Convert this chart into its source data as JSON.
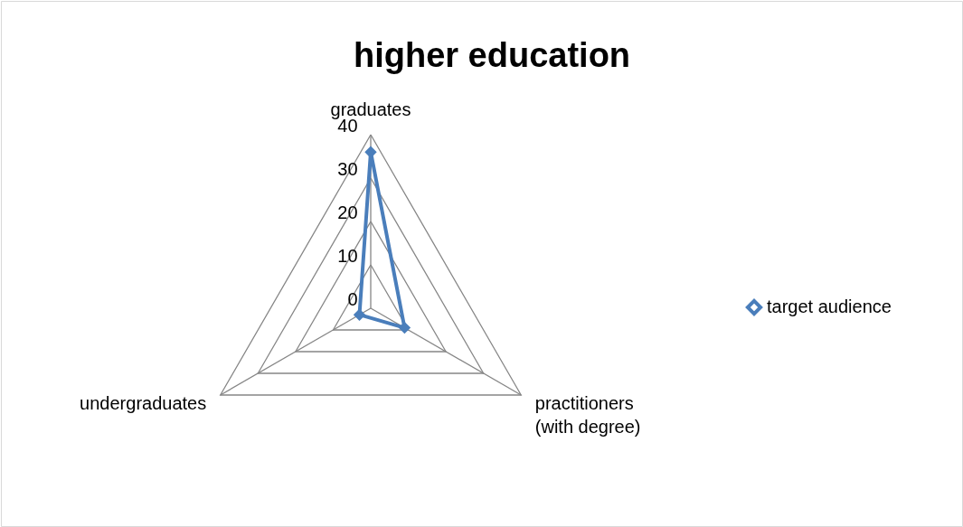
{
  "chart_data": {
    "type": "radar",
    "title": "higher education",
    "categories": [
      "graduates",
      "practitioners\n(with degree)",
      "undergraduates"
    ],
    "series": [
      {
        "name": "target audience",
        "color": "#4a7ebb",
        "values": [
          36,
          9,
          3
        ]
      }
    ],
    "ylim": [
      0,
      40
    ],
    "yticks": [
      0,
      10,
      20,
      30,
      40
    ],
    "grid": true,
    "legend": "right",
    "marker": "diamond"
  }
}
